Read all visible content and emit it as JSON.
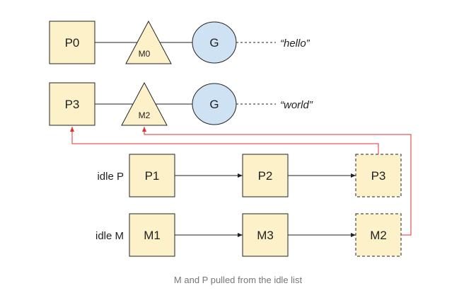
{
  "row1": {
    "p": "P0",
    "m": "M0",
    "g": "G",
    "value": "“hello”"
  },
  "row2": {
    "p": "P3",
    "m": "M2",
    "g": "G",
    "value": "“world”"
  },
  "idle_p": {
    "label": "idle P",
    "items": [
      "P1",
      "P2",
      "P3"
    ]
  },
  "idle_m": {
    "label": "idle M",
    "items": [
      "M1",
      "M3",
      "M2"
    ]
  },
  "caption": "M and P pulled from the idle list",
  "colors": {
    "box_fill": "#fdf1c9",
    "g_fill": "#cfe2f3",
    "pull_arrow": "#e03030",
    "line": "#222222"
  }
}
